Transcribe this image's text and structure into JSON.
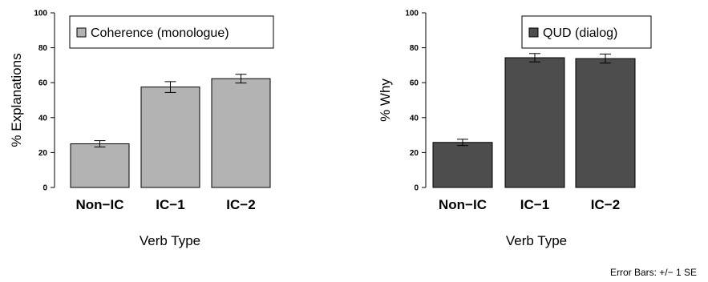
{
  "chart_data": [
    {
      "type": "bar",
      "title": "",
      "xlabel": "Verb Type",
      "ylabel": "% Explanations",
      "ylim": [
        0,
        100
      ],
      "yticks": [
        0,
        20,
        40,
        60,
        80,
        100
      ],
      "categories": [
        "Non−IC",
        "IC−1",
        "IC−2"
      ],
      "series": [
        {
          "name": "Coherence (monologue)",
          "values": [
            25,
            57.5,
            62.3
          ],
          "errors": [
            1.8,
            3.1,
            2.5
          ],
          "color": "#b3b3b3"
        }
      ],
      "legend_position": "top-right",
      "grid": false
    },
    {
      "type": "bar",
      "title": "",
      "xlabel": "Verb Type",
      "ylabel": "% Why",
      "ylim": [
        0,
        100
      ],
      "yticks": [
        0,
        20,
        40,
        60,
        80,
        100
      ],
      "categories": [
        "Non−IC",
        "IC−1",
        "IC−2"
      ],
      "series": [
        {
          "name": "QUD (dialog)",
          "values": [
            25.8,
            74.3,
            73.8
          ],
          "errors": [
            1.8,
            2.4,
            2.6
          ],
          "color": "#4d4d4d"
        }
      ],
      "legend_position": "top-right",
      "grid": false
    }
  ],
  "note": "Error Bars: +/− 1 SE"
}
